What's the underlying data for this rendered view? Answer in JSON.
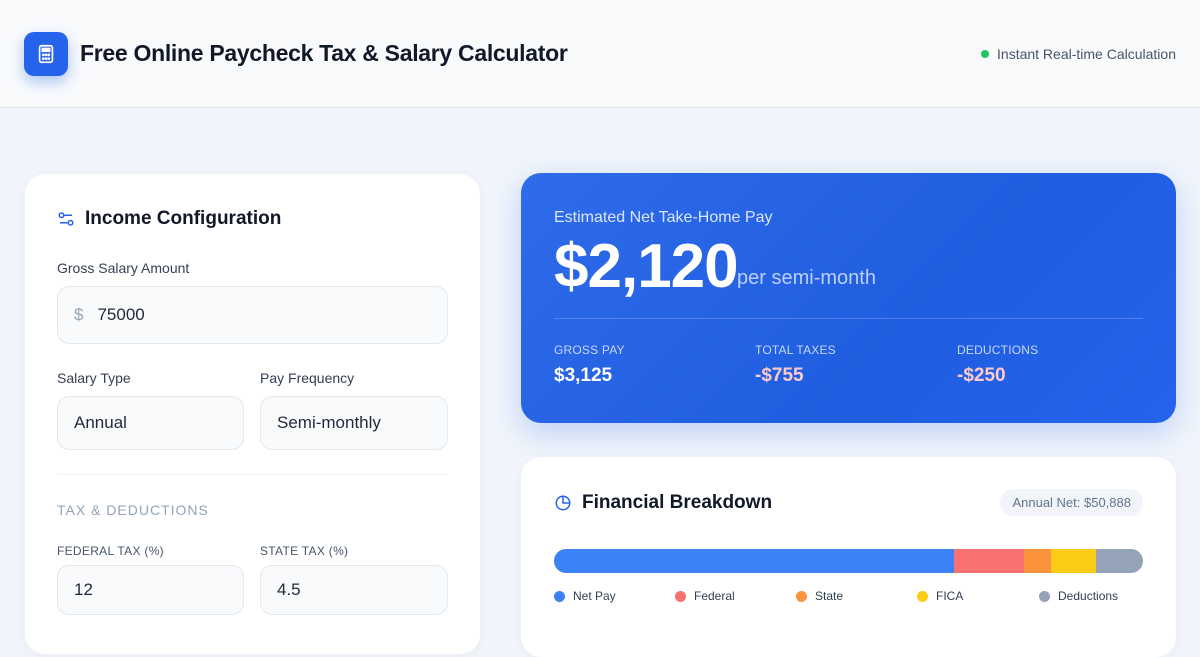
{
  "header": {
    "title": "Free Online Paycheck Tax & Salary Calculator",
    "status": "Instant Real-time Calculation",
    "logo_icon": "calculator-icon"
  },
  "income": {
    "title": "Income Configuration",
    "gross_label": "Gross Salary Amount",
    "currency_symbol": "$",
    "gross_value": "75000",
    "salary_type_label": "Salary Type",
    "salary_type_value": "Annual",
    "pay_frequency_label": "Pay Frequency",
    "pay_frequency_value": "Semi-monthly",
    "section_title": "TAX & DEDUCTIONS",
    "federal_label": "FEDERAL TAX (%)",
    "federal_value": "12",
    "state_label": "STATE TAX (%)",
    "state_value": "4.5"
  },
  "summary": {
    "caption": "Estimated Net Take-Home Pay",
    "net": "$2,120",
    "period": "per semi-month",
    "gross_label": "GROSS PAY",
    "gross": "$3,125",
    "taxes_label": "TOTAL TAXES",
    "taxes": "-$755",
    "deductions_label": "DEDUCTIONS",
    "deductions": "-$250"
  },
  "breakdown": {
    "title": "Financial Breakdown",
    "annual_net": "Annual Net: $50,888",
    "segments": [
      {
        "label": "Net Pay",
        "value": 2120,
        "color": "#3b82f6"
      },
      {
        "label": "Federal",
        "value": 375,
        "color": "#f87171"
      },
      {
        "label": "State",
        "value": 140.6,
        "color": "#fb923c"
      },
      {
        "label": "FICA",
        "value": 239,
        "color": "#facc15"
      },
      {
        "label": "Deductions",
        "value": 250,
        "color": "#94a3b8"
      }
    ]
  }
}
